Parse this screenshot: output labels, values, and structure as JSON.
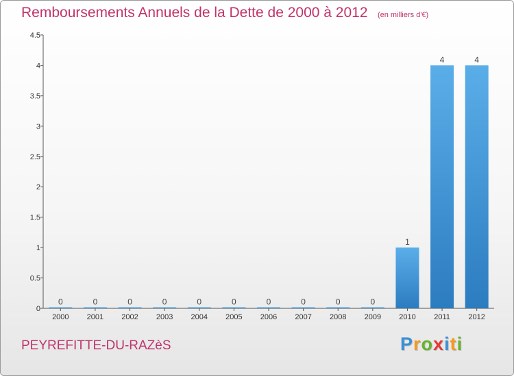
{
  "header": {
    "title": "Remboursements Annuels de la Dette de 2000 à 2012",
    "unit": "(en milliers d'€)"
  },
  "footer": {
    "commune": "PEYREFITTE-DU-RAZèS",
    "brand": "Proxiti",
    "brand_letters": [
      {
        "ch": "P",
        "color": "#3a8fd6"
      },
      {
        "ch": "r",
        "color": "#f29a1f"
      },
      {
        "ch": "o",
        "color": "#66b32e"
      },
      {
        "ch": "x",
        "color": "#e53935"
      },
      {
        "ch": "i",
        "color": "#3a8fd6"
      },
      {
        "ch": "t",
        "color": "#f29a1f"
      },
      {
        "ch": "i",
        "color": "#66b32e"
      }
    ]
  },
  "colors": {
    "title": "#c0336b",
    "bar_light": "#5aaee8",
    "bar_dark": "#2c7cc0",
    "text": "#333333"
  },
  "chart_data": {
    "type": "bar",
    "title": "Remboursements Annuels de la Dette de 2000 à 2012",
    "subtitle": "(en milliers d'€)",
    "categories": [
      "2000",
      "2001",
      "2002",
      "2003",
      "2004",
      "2005",
      "2006",
      "2007",
      "2008",
      "2009",
      "2010",
      "2011",
      "2012"
    ],
    "values": [
      0,
      0,
      0,
      0,
      0,
      0,
      0,
      0,
      0,
      0,
      1,
      4,
      4
    ],
    "data_labels": [
      "0",
      "0",
      "0",
      "0",
      "0",
      "0",
      "0",
      "0",
      "0",
      "0",
      "1",
      "4",
      "4"
    ],
    "ylim": [
      0,
      4.5
    ],
    "yticks": [
      0,
      0.5,
      1,
      1.5,
      2,
      2.5,
      3,
      3.5,
      4,
      4.5
    ],
    "ytick_labels": [
      "0",
      "0.5",
      "1",
      "1.5",
      "2",
      "2.5",
      "3",
      "3.5",
      "4",
      "4.5"
    ],
    "xlabel": "",
    "ylabel": "",
    "grid": false,
    "legend": "none"
  }
}
